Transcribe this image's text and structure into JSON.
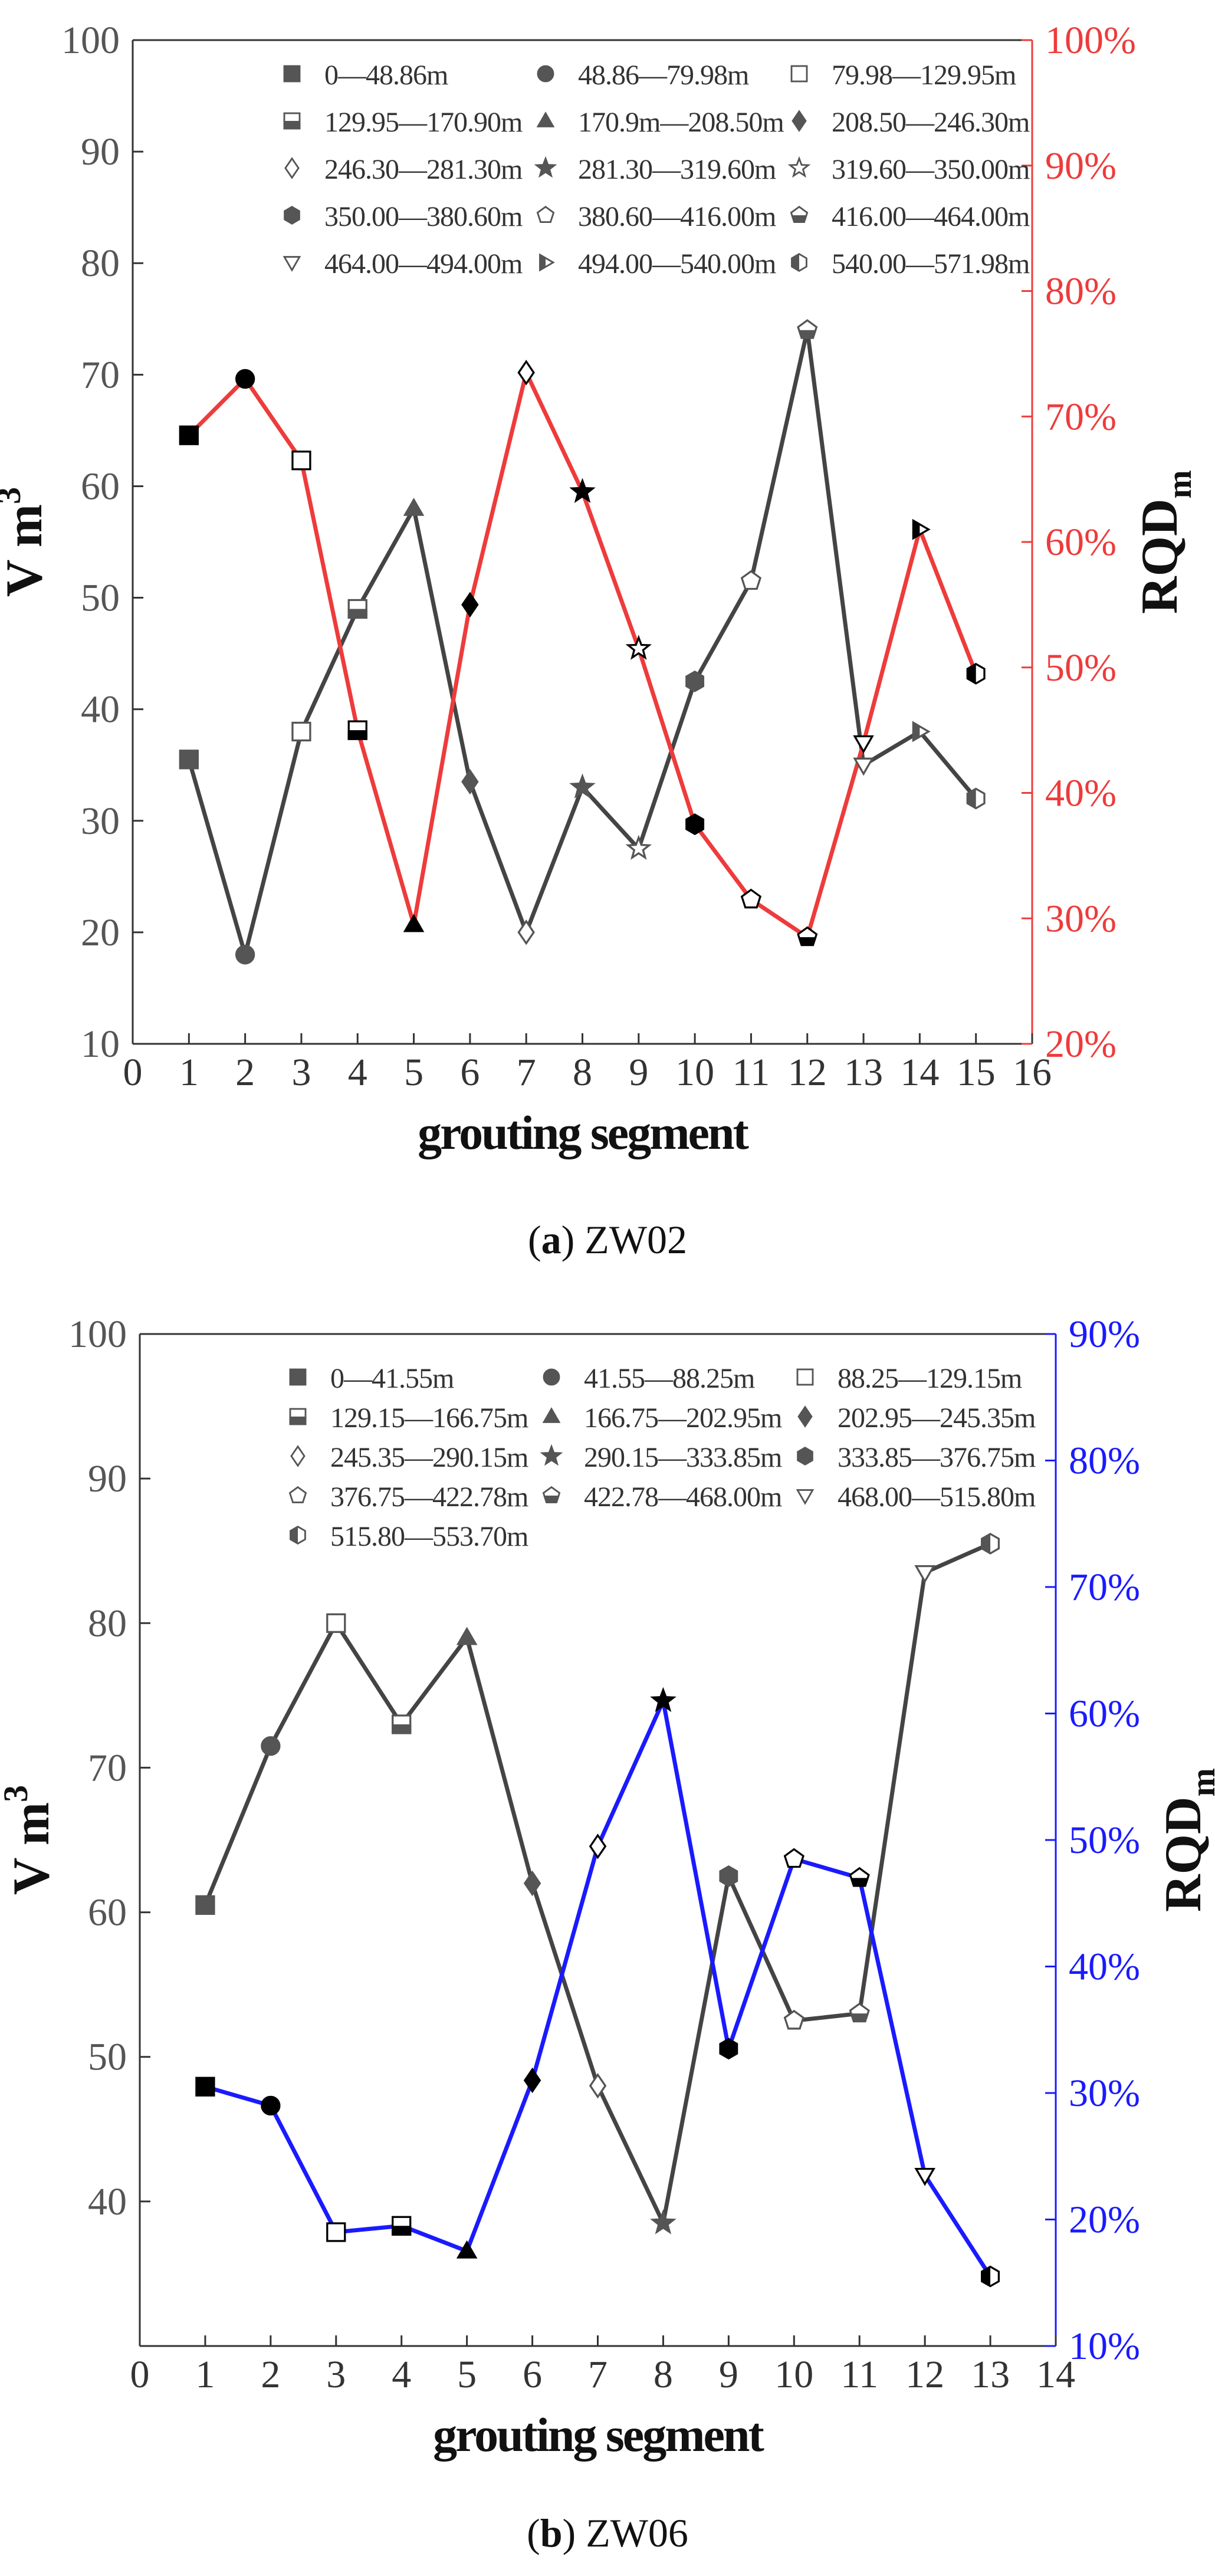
{
  "chart_data": [
    {
      "type": "line",
      "panel": "a",
      "caption": {
        "label": "(a)",
        "name": "ZW02"
      },
      "xlabel": "grouting segment",
      "ylabel_left": {
        "main": "V",
        "unit": "m",
        "sup": "3"
      },
      "ylabel_right": {
        "main": "RQD",
        "sub": "m"
      },
      "xlim": [
        0,
        16
      ],
      "ylim_left": [
        10,
        100
      ],
      "ylim_right": [
        20,
        100
      ],
      "x_ticks": [
        0,
        1,
        2,
        3,
        4,
        5,
        6,
        7,
        8,
        9,
        10,
        11,
        12,
        13,
        14,
        15,
        16
      ],
      "y_left_ticks": [
        10,
        20,
        30,
        40,
        50,
        60,
        70,
        80,
        90,
        100
      ],
      "y_right_ticks": [
        "20%",
        "30%",
        "40%",
        "50%",
        "60%",
        "70%",
        "80%",
        "90%",
        "100%"
      ],
      "y_right_tick_values": [
        20,
        30,
        40,
        50,
        60,
        70,
        80,
        90,
        100
      ],
      "colors": {
        "left_axis": "#555555",
        "right_axis": "#ee3b3b",
        "volume_line": "#444444",
        "rqd_line": "#ee3b3b"
      },
      "legend": [
        {
          "label": "0—48.86m",
          "marker": "square-filled"
        },
        {
          "label": "48.86—79.98m",
          "marker": "circle-filled"
        },
        {
          "label": "79.98—129.95m",
          "marker": "square-open"
        },
        {
          "label": "129.95—170.90m",
          "marker": "square-half"
        },
        {
          "label": "170.9m—208.50m",
          "marker": "triangle-up"
        },
        {
          "label": "208.50—246.30m",
          "marker": "diamond-filled"
        },
        {
          "label": "246.30—281.30m",
          "marker": "diamond-open"
        },
        {
          "label": "281.30—319.60m",
          "marker": "star-filled"
        },
        {
          "label": "319.60—350.00m",
          "marker": "star-open"
        },
        {
          "label": "350.00—380.60m",
          "marker": "hexagon-filled"
        },
        {
          "label": "380.60—416.00m",
          "marker": "pentagon-open"
        },
        {
          "label": "416.00—464.00m",
          "marker": "pentagon-half"
        },
        {
          "label": "464.00—494.00m",
          "marker": "triangle-down-open"
        },
        {
          "label": "494.00—540.00m",
          "marker": "triangle-right-half"
        },
        {
          "label": "540.00—571.98m",
          "marker": "hexagon-half"
        }
      ],
      "series": [
        {
          "name": "V (m3)",
          "axis": "left",
          "x": [
            1,
            2,
            3,
            4,
            5,
            6,
            7,
            8,
            9,
            10,
            11,
            12,
            13,
            14,
            15
          ],
          "values": [
            35.5,
            18,
            38,
            49,
            58,
            33.5,
            20,
            33,
            27.5,
            42.5,
            51.5,
            74,
            35,
            38,
            32
          ]
        },
        {
          "name": "RQDm (%)",
          "axis": "right",
          "x": [
            1,
            2,
            3,
            4,
            5,
            6,
            7,
            8,
            9,
            10,
            11,
            12,
            13,
            14,
            15
          ],
          "values": [
            68.5,
            73,
            66.5,
            45,
            29.5,
            55,
            73.5,
            64,
            51.5,
            37.5,
            31.5,
            28.5,
            44,
            61,
            49.5
          ]
        }
      ]
    },
    {
      "type": "line",
      "panel": "b",
      "caption": {
        "label": "(b)",
        "name": "ZW06"
      },
      "xlabel": "grouting segment",
      "ylabel_left": {
        "main": "V",
        "unit": "m",
        "sup": "3"
      },
      "ylabel_right": {
        "main": "RQD",
        "sub": "m"
      },
      "xlim": [
        0,
        14
      ],
      "ylim_left": [
        30,
        100
      ],
      "ylim_right": [
        10,
        90
      ],
      "x_ticks": [
        0,
        1,
        2,
        3,
        4,
        5,
        6,
        7,
        8,
        9,
        10,
        11,
        12,
        13,
        14
      ],
      "y_left_ticks": [
        40,
        50,
        60,
        70,
        80,
        90,
        100
      ],
      "y_right_ticks": [
        "10%",
        "20%",
        "30%",
        "40%",
        "50%",
        "60%",
        "70%",
        "80%",
        "90%"
      ],
      "y_right_tick_values": [
        10,
        20,
        30,
        40,
        50,
        60,
        70,
        80,
        90
      ],
      "colors": {
        "left_axis": "#555555",
        "right_axis": "#1a1aff",
        "volume_line": "#444444",
        "rqd_line": "#1a1aff"
      },
      "legend": [
        {
          "label": "0—41.55m",
          "marker": "square-filled"
        },
        {
          "label": "41.55—88.25m",
          "marker": "circle-filled"
        },
        {
          "label": "88.25—129.15m",
          "marker": "square-open"
        },
        {
          "label": "129.15—166.75m",
          "marker": "square-half"
        },
        {
          "label": "166.75—202.95m",
          "marker": "triangle-up"
        },
        {
          "label": "202.95—245.35m",
          "marker": "diamond-filled"
        },
        {
          "label": "245.35—290.15m",
          "marker": "diamond-open"
        },
        {
          "label": "290.15—333.85m",
          "marker": "star-filled"
        },
        {
          "label": "333.85—376.75m",
          "marker": "hexagon-filled"
        },
        {
          "label": "376.75—422.78m",
          "marker": "pentagon-open"
        },
        {
          "label": "422.78—468.00m",
          "marker": "pentagon-half"
        },
        {
          "label": "468.00—515.80m",
          "marker": "triangle-down-open"
        },
        {
          "label": "515.80—553.70m",
          "marker": "hexagon-half"
        }
      ],
      "series": [
        {
          "name": "V (m3)",
          "axis": "left",
          "x": [
            1,
            2,
            3,
            4,
            5,
            6,
            7,
            8,
            9,
            10,
            11,
            12,
            13
          ],
          "values": [
            60.5,
            71.5,
            80,
            73,
            79,
            62,
            48,
            38.5,
            62.5,
            52.5,
            53,
            83.5,
            85.5
          ]
        },
        {
          "name": "RQDm (%)",
          "axis": "right",
          "x": [
            1,
            2,
            3,
            4,
            5,
            6,
            7,
            8,
            9,
            10,
            11,
            12,
            13
          ],
          "values": [
            30.5,
            29,
            19,
            19.5,
            17.5,
            31,
            49.5,
            61,
            33.5,
            48.5,
            47,
            23.5,
            15.5
          ]
        }
      ]
    }
  ]
}
